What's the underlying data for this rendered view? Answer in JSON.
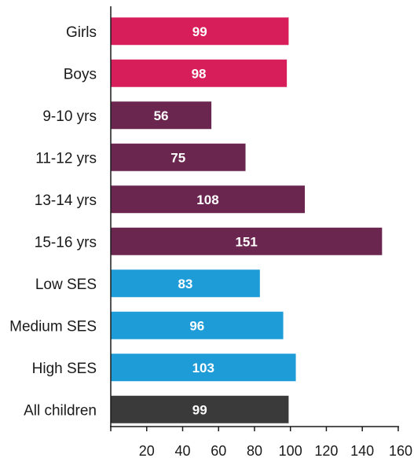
{
  "chart_data": {
    "type": "bar",
    "orientation": "horizontal",
    "categories": [
      "Girls",
      "Boys",
      "9-10 yrs",
      "11-12 yrs",
      "13-14 yrs",
      "15-16 yrs",
      "Low SES",
      "Medium SES",
      "High SES",
      "All children"
    ],
    "values": [
      99,
      98,
      56,
      75,
      108,
      151,
      83,
      96,
      103,
      99
    ],
    "value_labels": [
      "99",
      "98",
      "56",
      "75",
      "108",
      "151",
      "83",
      "96",
      "103",
      "99"
    ],
    "bar_colors": [
      "#d71e5a",
      "#d71e5a",
      "#6b2650",
      "#6b2650",
      "#6b2650",
      "#6b2650",
      "#1e9cd7",
      "#1e9cd7",
      "#1e9cd7",
      "#3a3a3a"
    ],
    "x_ticks": [
      20,
      40,
      60,
      80,
      100,
      120,
      140,
      160
    ],
    "x_tick_labels": [
      "20",
      "40",
      "60",
      "80",
      "100",
      "120",
      "140",
      "160"
    ],
    "xlim": [
      0,
      160
    ],
    "title": "",
    "xlabel": "",
    "ylabel": "",
    "grid": false,
    "legend": "none"
  }
}
